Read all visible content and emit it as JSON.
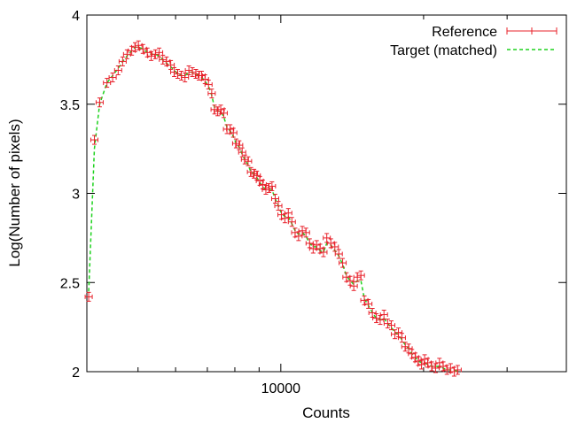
{
  "chart_data": {
    "type": "scatter",
    "xlabel": "Counts",
    "ylabel": "Log(Number of pixels)",
    "xscale": "log",
    "xlim": [
      3900,
      40000
    ],
    "ylim": [
      2,
      4
    ],
    "xticks_major": [
      10000
    ],
    "xtick_labels": [
      "10000"
    ],
    "xticks_minor": [
      5000,
      6000,
      7000,
      8000,
      9000,
      20000,
      30000,
      40000
    ],
    "yticks": [
      2,
      2.5,
      3,
      3.5,
      4
    ],
    "ytick_labels": [
      "2",
      "2.5",
      "3",
      "3.5",
      "4"
    ],
    "grid": false,
    "legend": "top-right",
    "colors": {
      "reference": "#e8202a",
      "target": "#1ed21e"
    },
    "series": [
      {
        "name": "Reference",
        "style": "points with x and y error bars",
        "x": [
          3935,
          4045,
          4150,
          4300,
          4420,
          4540,
          4640,
          4740,
          4850,
          4930,
          5010,
          5120,
          5230,
          5330,
          5440,
          5540,
          5640,
          5740,
          5860,
          5960,
          6060,
          6170,
          6280,
          6400,
          6510,
          6620,
          6720,
          6810,
          6920,
          7040,
          7150,
          7250,
          7360,
          7470,
          7580,
          7700,
          7820,
          7940,
          8050,
          8170,
          8290,
          8400,
          8530,
          8650,
          8780,
          8900,
          9030,
          9160,
          9300,
          9440,
          9580,
          9730,
          9880,
          10030,
          10200,
          10370,
          10550,
          10720,
          10900,
          11100,
          11300,
          11500,
          11700,
          11900,
          12100,
          12300,
          12500,
          12750,
          13000,
          13250,
          13500,
          13750,
          14000,
          14250,
          14500,
          14750,
          15000,
          15300,
          15600,
          15900,
          16200,
          16500,
          16800,
          17100,
          17400,
          17700,
          18000,
          18300,
          18600,
          18900,
          19200,
          19500,
          19800,
          20100,
          20400,
          20800,
          21200,
          21600,
          22000,
          22400,
          22800,
          23200,
          23600
        ],
        "y": [
          2.42,
          3.3,
          3.51,
          3.62,
          3.65,
          3.69,
          3.74,
          3.78,
          3.8,
          3.82,
          3.83,
          3.81,
          3.79,
          3.77,
          3.78,
          3.79,
          3.75,
          3.74,
          3.72,
          3.68,
          3.67,
          3.66,
          3.65,
          3.69,
          3.68,
          3.67,
          3.66,
          3.66,
          3.64,
          3.61,
          3.56,
          3.47,
          3.46,
          3.47,
          3.45,
          3.36,
          3.36,
          3.34,
          3.28,
          3.27,
          3.23,
          3.19,
          3.18,
          3.12,
          3.11,
          3.1,
          3.07,
          3.05,
          3.02,
          3.03,
          3.04,
          2.97,
          2.93,
          2.88,
          2.86,
          2.89,
          2.84,
          2.78,
          2.76,
          2.79,
          2.78,
          2.72,
          2.69,
          2.71,
          2.69,
          2.67,
          2.75,
          2.72,
          2.7,
          2.66,
          2.61,
          2.53,
          2.51,
          2.48,
          2.53,
          2.54,
          2.4,
          2.38,
          2.33,
          2.3,
          2.29,
          2.32,
          2.27,
          2.26,
          2.21,
          2.22,
          2.19,
          2.14,
          2.13,
          2.1,
          2.08,
          2.06,
          2.04,
          2.07,
          2.05,
          2.03,
          2.02,
          2.05,
          2.03,
          2.01,
          2.02,
          2.0,
          2.01
        ]
      },
      {
        "name": "Target (matched)",
        "style": "dashed line",
        "x": [
          3935,
          4045,
          4150,
          4300,
          4420,
          4540,
          4640,
          4740,
          4850,
          4930,
          5010,
          5120,
          5230,
          5330,
          5440,
          5540,
          5640,
          5740,
          5860,
          5960,
          6060,
          6170,
          6280,
          6400,
          6510,
          6620,
          6720,
          6810,
          6920,
          7040,
          7150,
          7250,
          7360,
          7470,
          7580,
          7700,
          7820,
          7940,
          8050,
          8170,
          8290,
          8400,
          8530,
          8650,
          8780,
          8900,
          9030,
          9160,
          9300,
          9440,
          9580,
          9730,
          9880,
          10030,
          10200,
          10370,
          10550,
          10720,
          10900,
          11100,
          11300,
          11500,
          11700,
          11900,
          12100,
          12300,
          12500,
          12750,
          13000,
          13250,
          13500,
          13750,
          14000,
          14250,
          14500,
          14750,
          15000,
          15300,
          15600,
          15900,
          16200,
          16500,
          16800,
          17100,
          17400,
          17700,
          18000,
          18300,
          18600,
          18900,
          19200,
          19500,
          19800,
          20100,
          20400,
          20800,
          21200,
          21600,
          22000,
          22400,
          22800,
          23200,
          23600
        ],
        "y": [
          2.45,
          3.25,
          3.5,
          3.62,
          3.66,
          3.7,
          3.74,
          3.77,
          3.8,
          3.82,
          3.82,
          3.81,
          3.79,
          3.78,
          3.78,
          3.77,
          3.75,
          3.73,
          3.71,
          3.69,
          3.67,
          3.66,
          3.66,
          3.68,
          3.68,
          3.67,
          3.66,
          3.65,
          3.63,
          3.6,
          3.55,
          3.48,
          3.46,
          3.46,
          3.43,
          3.37,
          3.35,
          3.32,
          3.28,
          3.26,
          3.22,
          3.19,
          3.16,
          3.12,
          3.11,
          3.09,
          3.06,
          3.04,
          3.02,
          3.02,
          3.02,
          2.97,
          2.93,
          2.89,
          2.87,
          2.87,
          2.83,
          2.79,
          2.77,
          2.78,
          2.76,
          2.72,
          2.7,
          2.7,
          2.68,
          2.67,
          2.72,
          2.71,
          2.68,
          2.65,
          2.6,
          2.54,
          2.51,
          2.49,
          2.51,
          2.51,
          2.41,
          2.37,
          2.33,
          2.3,
          2.29,
          2.3,
          2.27,
          2.25,
          2.22,
          2.21,
          2.18,
          2.15,
          2.13,
          2.1,
          2.08,
          2.06,
          2.05,
          2.05,
          2.04,
          2.03,
          2.03,
          2.03,
          2.02,
          2.01,
          2.01,
          2.01,
          2.0
        ]
      }
    ]
  }
}
